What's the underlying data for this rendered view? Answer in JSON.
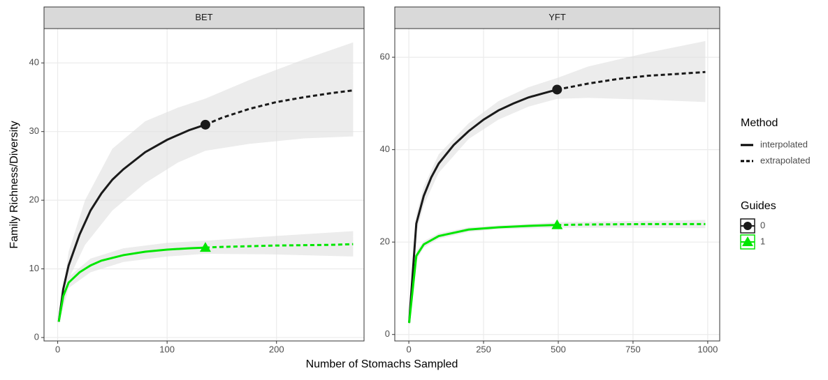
{
  "chart_data": [
    {
      "type": "line",
      "title": "BET",
      "xlabel": "Number of Stomachs Sampled",
      "ylabel": "Family Richness/Diversity",
      "xlim": [
        -12.5,
        280
      ],
      "ylim": [
        -0.5,
        45
      ],
      "xticks": [
        0,
        100,
        200
      ],
      "yticks": [
        0,
        10,
        20,
        30,
        40
      ],
      "grid": true,
      "legend": {
        "method_title": "Method",
        "method_items": [
          "interpolated",
          "extrapolated"
        ],
        "guides_title": "Guides"
      },
      "series": [
        {
          "name": "0",
          "color": "#1a1a1a",
          "marker": "circle",
          "interpolated": {
            "x": [
              1,
              5,
              10,
              20,
              30,
              40,
              50,
              60,
              80,
              100,
              120,
              135
            ],
            "values": [
              2.3,
              7,
              10.5,
              15,
              18.5,
              21,
              23,
              24.5,
              27,
              28.8,
              30.2,
              31
            ]
          },
          "extrapolated": {
            "x": [
              135,
              150,
              175,
              200,
              225,
              250,
              270
            ],
            "values": [
              31,
              32,
              33.3,
              34.3,
              35,
              35.6,
              36
            ]
          },
          "observed": {
            "x": 135,
            "value": 31
          },
          "band": {
            "x": [
              1,
              10,
              25,
              50,
              80,
              110,
              135,
              175,
              225,
              270
            ],
            "lower": [
              2,
              8.5,
              13.5,
              18.5,
              22.5,
              25.5,
              27.2,
              28.2,
              29,
              29.3
            ],
            "upper": [
              2.6,
              12.5,
              20,
              27.5,
              31.5,
              33.5,
              34.8,
              37.5,
              40.5,
              43
            ]
          }
        },
        {
          "name": "1",
          "color": "#00e600",
          "marker": "triangle",
          "interpolated": {
            "x": [
              1,
              5,
              10,
              20,
              30,
              40,
              60,
              80,
              100,
              120,
              135
            ],
            "values": [
              2.3,
              6,
              8,
              9.5,
              10.5,
              11.2,
              12,
              12.5,
              12.8,
              13,
              13.1
            ]
          },
          "extrapolated": {
            "x": [
              135,
              150,
              200,
              250,
              270
            ],
            "values": [
              13.1,
              13.2,
              13.4,
              13.5,
              13.6
            ]
          },
          "observed": {
            "x": 135,
            "value": 13.1
          },
          "band": {
            "x": [
              1,
              10,
              30,
              60,
              100,
              135,
              200,
              270
            ],
            "lower": [
              2,
              7.2,
              9.5,
              11,
              11.8,
              12.2,
              12.1,
              11.8
            ],
            "upper": [
              2.6,
              8.8,
              11.5,
              13,
              13.8,
              14.1,
              14.8,
              15.5
            ]
          }
        }
      ]
    },
    {
      "type": "line",
      "title": "YFT",
      "xlim": [
        -47,
        1040
      ],
      "ylim": [
        -1.4,
        66.2
      ],
      "xticks": [
        0,
        250,
        500,
        750,
        1000
      ],
      "yticks": [
        0,
        20,
        40,
        60
      ],
      "grid": true,
      "series": [
        {
          "name": "0",
          "color": "#1a1a1a",
          "marker": "circle",
          "interpolated": {
            "x": [
              1,
              25,
              50,
              75,
              100,
              150,
              200,
              250,
              300,
              350,
              400,
              450,
              496
            ],
            "values": [
              2.5,
              24,
              30,
              34,
              37,
              41,
              44,
              46.5,
              48.5,
              50,
              51.3,
              52.2,
              53
            ]
          },
          "extrapolated": {
            "x": [
              496,
              600,
              700,
              800,
              900,
              992
            ],
            "values": [
              53,
              54.3,
              55.3,
              56,
              56.4,
              56.8
            ]
          },
          "observed": {
            "x": 496,
            "value": 53
          },
          "band": {
            "x": [
              1,
              25,
              50,
              100,
              200,
              300,
              400,
              496,
              600,
              800,
              992
            ],
            "lower": [
              2,
              22,
              28,
              35,
              42.3,
              46.5,
              49.3,
              51,
              51.2,
              50.8,
              50.3
            ],
            "upper": [
              3,
              26,
              32,
              39,
              45.7,
              50.5,
              53.5,
              55.5,
              58,
              61,
              63.5
            ]
          }
        },
        {
          "name": "1",
          "color": "#00e600",
          "marker": "triangle",
          "interpolated": {
            "x": [
              1,
              25,
              50,
              100,
              200,
              300,
              400,
              496
            ],
            "values": [
              2.5,
              17,
              19.5,
              21.3,
              22.7,
              23.2,
              23.5,
              23.7
            ]
          },
          "extrapolated": {
            "x": [
              496,
              600,
              800,
              992
            ],
            "values": [
              23.7,
              23.8,
              23.9,
              23.9
            ]
          },
          "observed": {
            "x": 496,
            "value": 23.7
          },
          "band": {
            "x": [
              1,
              25,
              50,
              100,
              200,
              300,
              496,
              700,
              992
            ],
            "lower": [
              2,
              16,
              18.8,
              20.7,
              22.2,
              22.8,
              23.1,
              23.1,
              23
            ],
            "upper": [
              3,
              18,
              20.2,
              21.9,
              23.2,
              23.6,
              24.3,
              24.5,
              24.8
            ]
          }
        }
      ]
    }
  ]
}
